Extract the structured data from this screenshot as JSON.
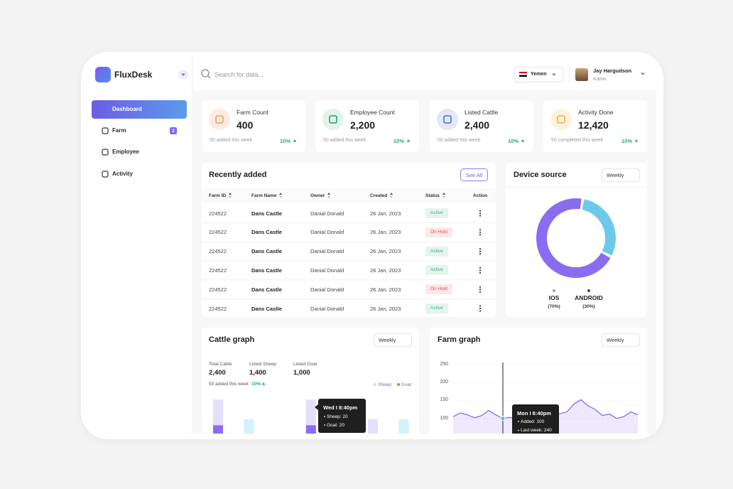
{
  "sidebar": {
    "brand": "FluxDesk",
    "nav": [
      {
        "label": "Dashboard"
      },
      {
        "label": "Farm",
        "badge": "2"
      },
      {
        "label": "Employee"
      },
      {
        "label": "Activity"
      }
    ]
  },
  "header": {
    "search_placeholder": "Search for data...",
    "country": "Yemen",
    "user": {
      "name": "Jay Hargudson",
      "role": "Admin"
    }
  },
  "stats": [
    {
      "title": "Farm Count",
      "value": "400",
      "note": "50 added this week",
      "change": "10%",
      "icon_bg": "#fdebe2",
      "icon_color": "#f0a060"
    },
    {
      "title": "Employee Count",
      "value": "2,200",
      "note": "50 added this week",
      "change": "10%",
      "icon_bg": "#e2f3ec",
      "icon_color": "#2e9e6a"
    },
    {
      "title": "Listed Cattle",
      "value": "2,400",
      "note": "50 added this week",
      "change": "10%",
      "icon_bg": "#e3e8f7",
      "icon_color": "#4b6fd6"
    },
    {
      "title": "Activity Done",
      "value": "12,420",
      "note": "50 completed this week",
      "change": "10%",
      "icon_bg": "#fdf3dd",
      "icon_color": "#e8b44a"
    }
  ],
  "recent": {
    "title": "Recently added",
    "button": "See All",
    "columns": [
      "Farm ID",
      "Farm Name",
      "Owner",
      "Created",
      "Status",
      "Action"
    ],
    "rows": [
      {
        "id": "224522",
        "name": "Dans Castle",
        "owner": "Danial Donald",
        "created": "26 Jan, 2023",
        "status": "Active",
        "status_color": "#3dae7e"
      },
      {
        "id": "224522",
        "name": "Dans Castle",
        "owner": "Danial Donald",
        "created": "26 Jan, 2023",
        "status": "On Hold",
        "status_color": "#e05252"
      },
      {
        "id": "224522",
        "name": "Dans Castle",
        "owner": "Danial Donald",
        "created": "26 Jan, 2023",
        "status": "Active",
        "status_color": "#3dae7e"
      },
      {
        "id": "224522",
        "name": "Dans Castle",
        "owner": "Danial Donald",
        "created": "26 Jan, 2023",
        "status": "Active",
        "status_color": "#3dae7e"
      },
      {
        "id": "224522",
        "name": "Dans Castle",
        "owner": "Danial Donald",
        "created": "26 Jan, 2023",
        "status": "On Hold",
        "status_color": "#e05252"
      },
      {
        "id": "224522",
        "name": "Dans Castle",
        "owner": "Danial Donald",
        "created": "26 Jan, 2023",
        "status": "Active",
        "status_color": "#3dae7e"
      }
    ]
  },
  "device_source": {
    "title": "Device source",
    "period": "Weekly",
    "chart": {
      "type": "donut",
      "categories": [
        "IOS",
        "ANDROID"
      ],
      "values": [
        70,
        30
      ],
      "value_labels": [
        "(70%)",
        "(30%)"
      ],
      "colors": [
        "#8b6cf0",
        "#6cc9ea"
      ],
      "dot_colors": [
        "#7fb77e",
        "#3b3f8f"
      ]
    }
  },
  "cattle_graph": {
    "title": "Cattle graph",
    "period": "Weekly",
    "totals": [
      {
        "label": "Total Cattle",
        "value": "2,400"
      },
      {
        "label": "Listed Sheep",
        "value": "1,400"
      },
      {
        "label": "Listed Goat",
        "value": "1,000"
      }
    ],
    "note": "50 added this week",
    "change": "10%",
    "chart": {
      "type": "bar",
      "ylim": [
        0,
        45
      ],
      "series": [
        {
          "name": "Sheep",
          "legend_color": "#d9d9d9",
          "values": [
            40,
            21,
            null,
            40,
            null,
            21,
            21
          ],
          "colors": [
            "#e3dffc",
            "#d4f1fb",
            "#e3dffc",
            "#e3dffc",
            "#e3dffc",
            "#e3dffc",
            "#d4f1fb"
          ]
        },
        {
          "name": "Goat",
          "legend_color": "#6aa84f",
          "color": "#8b6cf0",
          "values": [
            15,
            null,
            null,
            15,
            null,
            null,
            null
          ]
        }
      ]
    },
    "tooltip": {
      "title": "Wed I 8:40pm",
      "lines": [
        "Sheep: 20",
        "Goat: 20"
      ]
    }
  },
  "farm_graph": {
    "title": "Farm graph",
    "period": "Weekly",
    "chart": {
      "type": "area",
      "ylim": [
        60,
        265
      ],
      "yticks": [
        250,
        200,
        150,
        100
      ],
      "color": "#8b6cf0",
      "values": [
        105,
        115,
        110,
        102,
        108,
        122,
        110,
        100,
        103,
        98,
        110,
        100,
        105,
        118,
        108,
        113,
        118,
        140,
        152,
        135,
        125,
        108,
        112,
        100,
        105,
        118,
        110
      ]
    },
    "tooltip": {
      "title": "Mon I 8:40pm",
      "lines": [
        "Added: 100",
        "Last week: 240"
      ]
    }
  }
}
